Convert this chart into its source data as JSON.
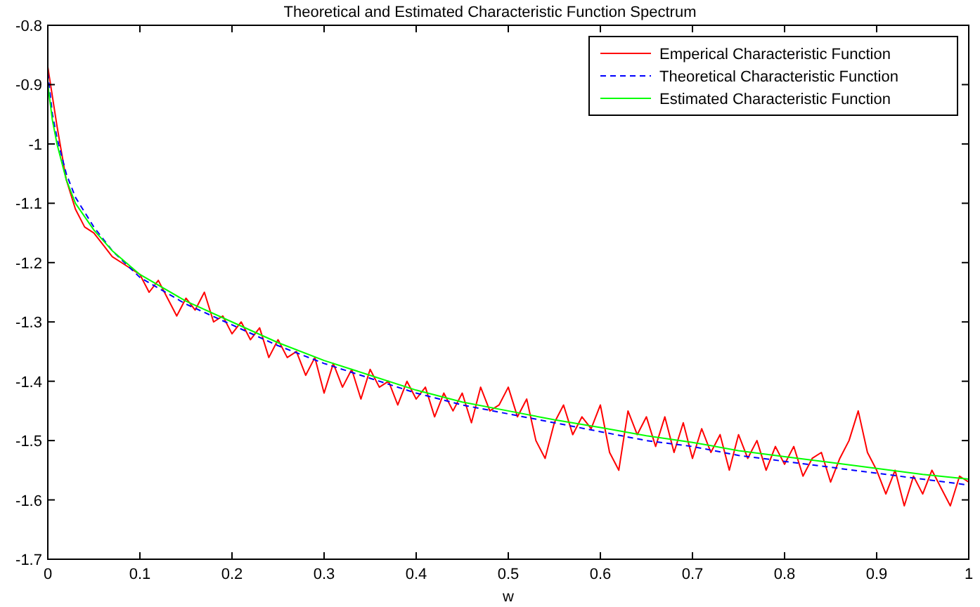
{
  "chart_data": {
    "type": "line",
    "title": "Theoretical and Estimated Characteristic Function Spectrum",
    "xlabel": "w",
    "xlim": [
      0,
      1
    ],
    "ylim": [
      -1.7,
      -0.8
    ],
    "xticks": [
      0,
      0.1,
      0.2,
      0.3,
      0.4,
      0.5,
      0.6,
      0.7,
      0.8,
      0.9,
      1
    ],
    "yticks": [
      -1.7,
      -1.6,
      -1.5,
      -1.4,
      -1.3,
      -1.2,
      -1.1,
      -1,
      -0.9,
      -0.8
    ],
    "grid": false,
    "legend": "top right",
    "series": [
      {
        "name": "Emperical Characteristic Function",
        "color": "#ff0000",
        "line_style": "solid",
        "x": [
          0,
          0.01,
          0.02,
          0.03,
          0.04,
          0.05,
          0.06,
          0.07,
          0.08,
          0.09,
          0.1,
          0.11,
          0.12,
          0.13,
          0.14,
          0.15,
          0.16,
          0.17,
          0.18,
          0.19,
          0.2,
          0.21,
          0.22,
          0.23,
          0.24,
          0.25,
          0.26,
          0.27,
          0.28,
          0.29,
          0.3,
          0.31,
          0.32,
          0.33,
          0.34,
          0.35,
          0.36,
          0.37,
          0.38,
          0.39,
          0.4,
          0.41,
          0.42,
          0.43,
          0.44,
          0.45,
          0.46,
          0.47,
          0.48,
          0.49,
          0.5,
          0.51,
          0.52,
          0.53,
          0.54,
          0.55,
          0.56,
          0.57,
          0.58,
          0.59,
          0.6,
          0.61,
          0.62,
          0.63,
          0.64,
          0.65,
          0.66,
          0.67,
          0.68,
          0.69,
          0.7,
          0.71,
          0.72,
          0.73,
          0.74,
          0.75,
          0.76,
          0.77,
          0.78,
          0.79,
          0.8,
          0.81,
          0.82,
          0.83,
          0.84,
          0.85,
          0.86,
          0.87,
          0.88,
          0.89,
          0.9,
          0.91,
          0.92,
          0.93,
          0.94,
          0.95,
          0.96,
          0.97,
          0.98,
          0.99,
          1
        ],
        "values": [
          -0.87,
          -0.97,
          -1.06,
          -1.11,
          -1.14,
          -1.15,
          -1.17,
          -1.19,
          -1.2,
          -1.21,
          -1.22,
          -1.25,
          -1.23,
          -1.26,
          -1.29,
          -1.26,
          -1.28,
          -1.25,
          -1.3,
          -1.29,
          -1.32,
          -1.3,
          -1.33,
          -1.31,
          -1.36,
          -1.33,
          -1.36,
          -1.35,
          -1.39,
          -1.36,
          -1.42,
          -1.37,
          -1.41,
          -1.38,
          -1.43,
          -1.38,
          -1.41,
          -1.4,
          -1.44,
          -1.4,
          -1.43,
          -1.41,
          -1.46,
          -1.42,
          -1.45,
          -1.42,
          -1.47,
          -1.41,
          -1.45,
          -1.44,
          -1.41,
          -1.46,
          -1.43,
          -1.5,
          -1.53,
          -1.47,
          -1.44,
          -1.49,
          -1.46,
          -1.48,
          -1.44,
          -1.52,
          -1.55,
          -1.45,
          -1.49,
          -1.46,
          -1.51,
          -1.46,
          -1.52,
          -1.47,
          -1.53,
          -1.48,
          -1.52,
          -1.49,
          -1.55,
          -1.49,
          -1.53,
          -1.5,
          -1.55,
          -1.51,
          -1.54,
          -1.51,
          -1.56,
          -1.53,
          -1.52,
          -1.57,
          -1.53,
          -1.5,
          -1.45,
          -1.52,
          -1.55,
          -1.59,
          -1.55,
          -1.61,
          -1.56,
          -1.59,
          -1.55,
          -1.58,
          -1.61,
          -1.56,
          -1.57
        ]
      },
      {
        "name": "Theoretical Characteristic Function",
        "color": "#0000ff",
        "line_style": "dashed",
        "x": [
          0,
          0.005,
          0.01,
          0.02,
          0.03,
          0.05,
          0.07,
          0.1,
          0.15,
          0.2,
          0.25,
          0.3,
          0.35,
          0.4,
          0.45,
          0.5,
          0.55,
          0.6,
          0.65,
          0.7,
          0.75,
          0.8,
          0.85,
          0.9,
          0.95,
          1
        ],
        "values": [
          -0.88,
          -0.95,
          -0.99,
          -1.05,
          -1.09,
          -1.14,
          -1.18,
          -1.225,
          -1.27,
          -1.305,
          -1.34,
          -1.37,
          -1.395,
          -1.42,
          -1.44,
          -1.455,
          -1.47,
          -1.485,
          -1.5,
          -1.51,
          -1.525,
          -1.535,
          -1.545,
          -1.555,
          -1.565,
          -1.575
        ]
      },
      {
        "name": "Estimated Characteristic Function",
        "color": "#00ff00",
        "line_style": "solid",
        "x": [
          0,
          0.005,
          0.01,
          0.02,
          0.03,
          0.05,
          0.07,
          0.1,
          0.15,
          0.2,
          0.25,
          0.3,
          0.35,
          0.4,
          0.45,
          0.5,
          0.55,
          0.6,
          0.65,
          0.7,
          0.75,
          0.8,
          0.85,
          0.9,
          0.95,
          1
        ],
        "values": [
          -0.9,
          -0.96,
          -1,
          -1.06,
          -1.1,
          -1.145,
          -1.18,
          -1.22,
          -1.265,
          -1.3,
          -1.335,
          -1.365,
          -1.39,
          -1.415,
          -1.435,
          -1.45,
          -1.465,
          -1.478,
          -1.492,
          -1.503,
          -1.517,
          -1.527,
          -1.537,
          -1.547,
          -1.557,
          -1.565
        ]
      }
    ]
  }
}
